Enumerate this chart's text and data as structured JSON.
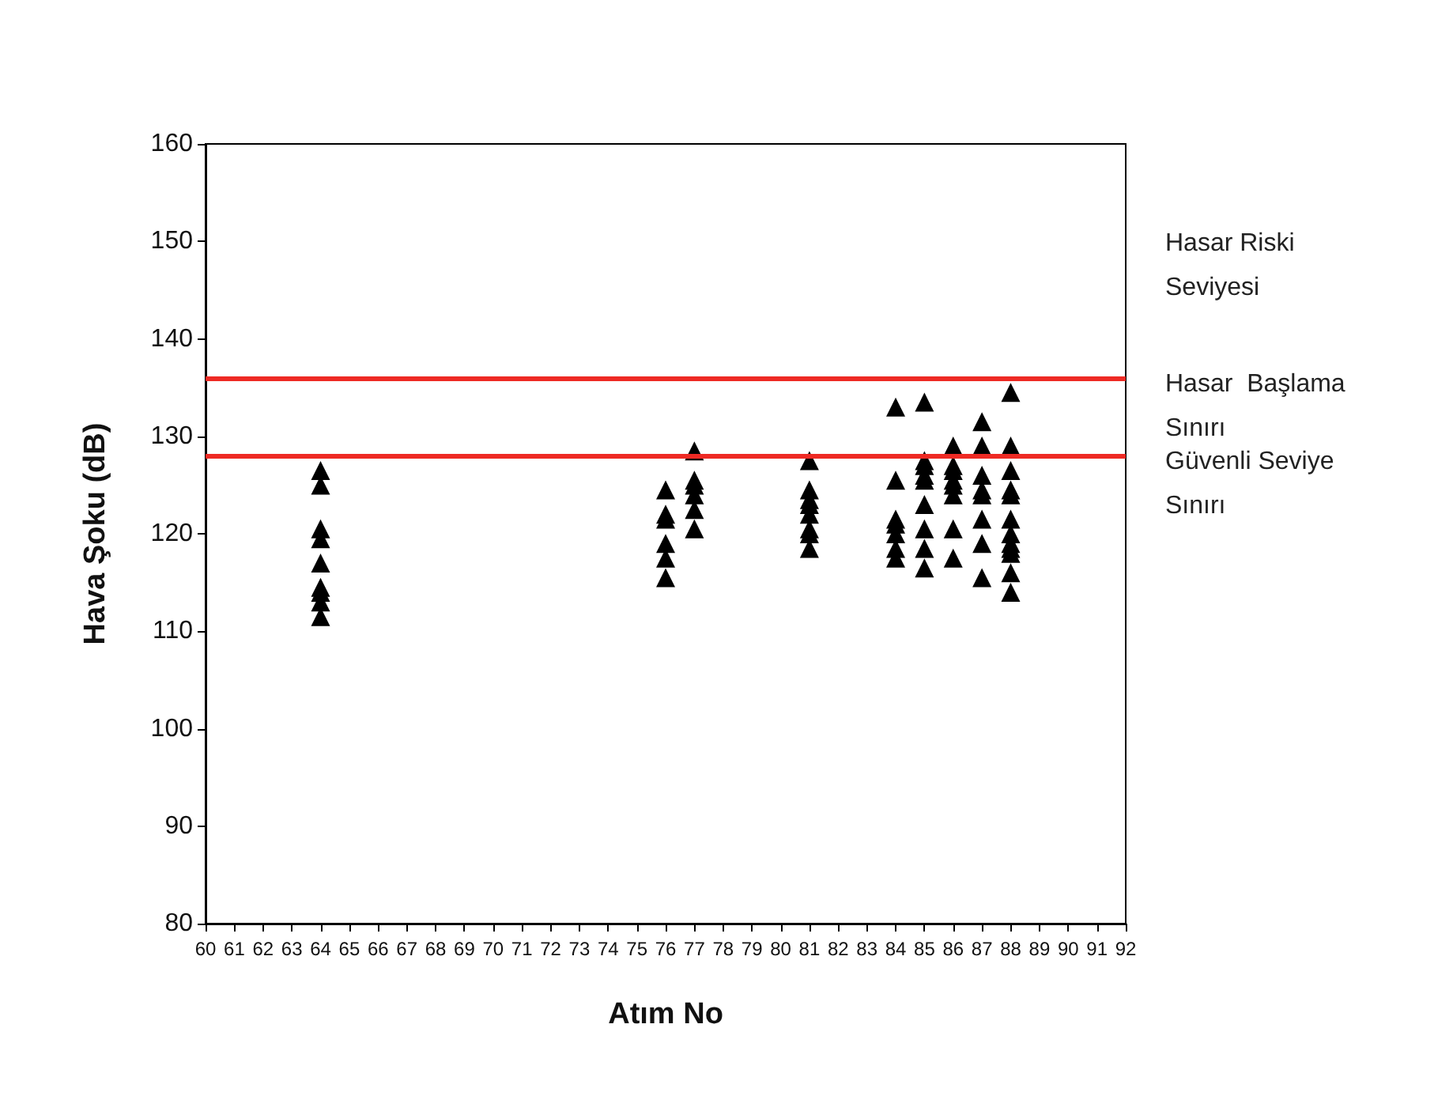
{
  "chart_data": {
    "type": "scatter",
    "xlabel": "Atım No",
    "ylabel": "Hava Şoku (dB)",
    "xlim": [
      60,
      92
    ],
    "xticks": [
      60,
      61,
      62,
      63,
      64,
      65,
      66,
      67,
      68,
      69,
      70,
      71,
      72,
      73,
      74,
      75,
      76,
      77,
      78,
      79,
      80,
      81,
      82,
      83,
      84,
      85,
      86,
      87,
      88,
      89,
      90,
      91,
      92
    ],
    "ylim": [
      80,
      160
    ],
    "yticks": [
      80,
      90,
      100,
      110,
      120,
      130,
      140,
      150,
      160
    ],
    "grid": false,
    "marker": "triangle",
    "series": [
      {
        "color": "#000000",
        "x": [
          64,
          64,
          64,
          64,
          64,
          64,
          64,
          64,
          64,
          76,
          76,
          76,
          76,
          76,
          76,
          77,
          77,
          77,
          77,
          77,
          77,
          81,
          81,
          81,
          81,
          81,
          81,
          81,
          81,
          84,
          84,
          84,
          84,
          84,
          84,
          84,
          85,
          85,
          85,
          85,
          85,
          85,
          85,
          85,
          85,
          86,
          86,
          86,
          86,
          86,
          86,
          86,
          86,
          87,
          87,
          87,
          87,
          87,
          87,
          87,
          87,
          88,
          88,
          88,
          88,
          88,
          88,
          88,
          88,
          88,
          88,
          88,
          88
        ],
        "values": [
          126.5,
          125,
          120.5,
          119.5,
          117,
          114.5,
          114,
          113,
          111.5,
          124.5,
          122,
          121.5,
          119,
          117.5,
          115.5,
          128.5,
          125.5,
          125,
          124,
          122.5,
          120.5,
          127.5,
          124.5,
          123.5,
          123,
          122,
          120.5,
          120,
          118.5,
          133,
          125.5,
          121.5,
          121,
          120,
          118.5,
          117.5,
          133.5,
          127.5,
          127,
          126,
          125.5,
          123,
          120.5,
          118.5,
          116.5,
          129,
          127,
          126.5,
          125.5,
          125,
          124,
          120.5,
          117.5,
          131.5,
          129,
          126,
          124.5,
          124,
          121.5,
          119,
          115.5,
          134.5,
          129,
          126.5,
          124.5,
          124,
          121.5,
          120,
          119,
          118.5,
          118,
          116,
          114
        ]
      }
    ],
    "ref_lines": [
      {
        "axis": "y",
        "value": 136,
        "label": "Hasar  Başlama Sınırı",
        "color": "#ee2a24"
      },
      {
        "axis": "y",
        "value": 128,
        "label": "Güvenli Seviye Sınırı",
        "color": "#ee2a24"
      }
    ],
    "annotations": [
      "Hasar Riski Seviyesi"
    ]
  }
}
